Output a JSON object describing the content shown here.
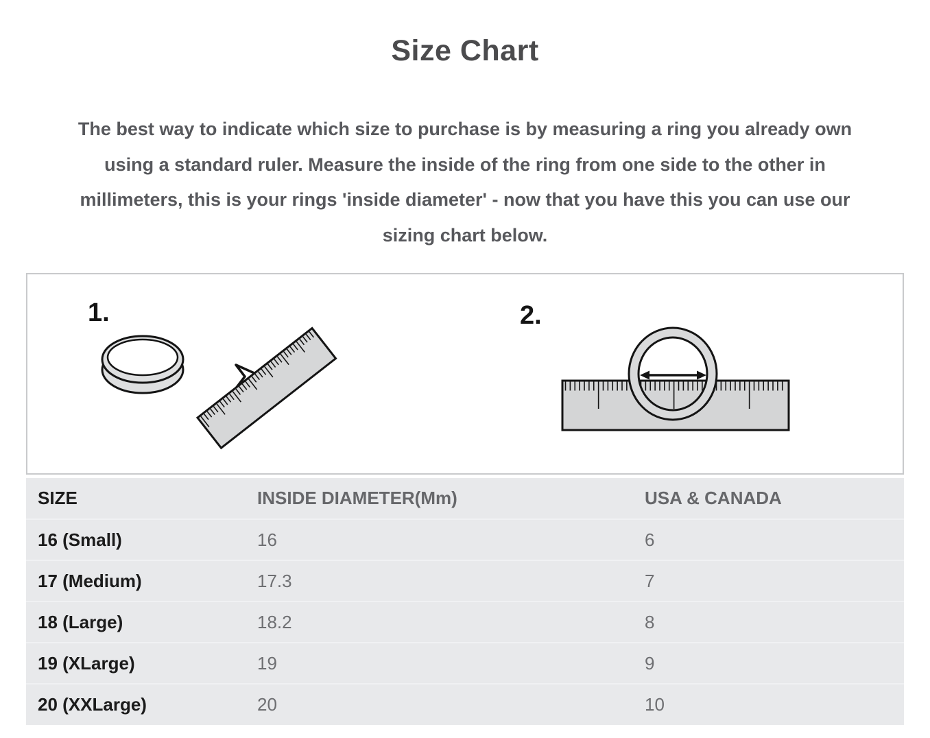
{
  "page": {
    "title": "Size Chart",
    "description": "The best way to indicate which size to purchase is by measuring a ring you already own using a standard ruler. Measure the inside of the ring from one side to the other in millimeters, this is your rings 'inside diameter' - now that you have this you can use our sizing chart below.",
    "description_lines": [
      "The best way to indicate which size to purchase is by measuring a ring you already own",
      "using a standard ruler. Measure the inside of the ring from one side to the other in",
      "millimeters, this is your rings 'inside diameter' - now that you have this you can use our",
      "sizing chart below."
    ]
  },
  "illustration": {
    "step1_label": "1.",
    "step2_label": "2."
  },
  "size_table": {
    "columns": [
      "SIZE",
      "INSIDE DIAMETER(Mm)",
      "USA & CANADA"
    ],
    "row_keys": [
      "size",
      "inside_diameter_mm",
      "usa_canada"
    ],
    "rows": [
      {
        "size": "16 (Small)",
        "inside_diameter_mm": "16",
        "usa_canada": "6"
      },
      {
        "size": "17 (Medium)",
        "inside_diameter_mm": "17.3",
        "usa_canada": "7"
      },
      {
        "size": "18 (Large)",
        "inside_diameter_mm": "18.2",
        "usa_canada": "8"
      },
      {
        "size": "19 (XLarge)",
        "inside_diameter_mm": "19",
        "usa_canada": "9"
      },
      {
        "size": "20 (XXLarge)",
        "inside_diameter_mm": "20",
        "usa_canada": "10"
      }
    ]
  },
  "colors": {
    "title_text": "#4b4b4d",
    "body_text": "#57585c",
    "table_background": "#e8e9eb",
    "table_dark_text": "#1b1b1b",
    "table_gray_text": "#6e6f72",
    "illustration_border": "#c9cacc",
    "drawing_fill": "#d6d7d8",
    "drawing_outline": "#141414"
  }
}
